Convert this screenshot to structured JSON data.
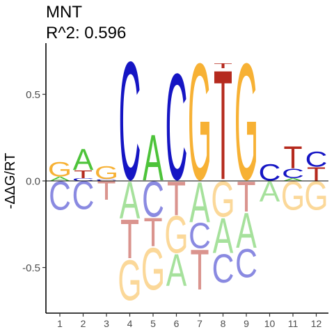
{
  "title": "MNT",
  "subtitle": "R^2: 0.596",
  "chart_data": {
    "type": "sequence_logo",
    "title": "MNT",
    "subtitle": "R^2: 0.596",
    "ylabel": "-ΔΔG/RT",
    "xlabel": "",
    "ylim": [
      -0.78,
      0.75
    ],
    "yticks": [
      -0.5,
      0.0,
      0.5
    ],
    "ytick_labels": [
      "-0.5",
      "0.0",
      "0.5"
    ],
    "positions": [
      1,
      2,
      3,
      4,
      5,
      6,
      7,
      8,
      9,
      10,
      11,
      12
    ],
    "position_labels": [
      "1",
      "2",
      "3",
      "4",
      "5",
      "6",
      "7",
      "8",
      "9",
      "10",
      "11",
      "12"
    ],
    "colors": {
      "A": "#4DC33A",
      "C": "#1515C4",
      "G": "#F7B134",
      "T": "#B52A1E"
    },
    "negative_alpha": 0.5,
    "grid": false,
    "legend": "none",
    "positive": [
      [
        {
          "base": "A",
          "height": 0.025
        },
        {
          "base": "G",
          "height": 0.085
        }
      ],
      [
        {
          "base": "C",
          "height": 0.015
        },
        {
          "base": "T",
          "height": 0.045
        },
        {
          "base": "A",
          "height": 0.125
        }
      ],
      [
        {
          "base": "C",
          "height": 0.01
        },
        {
          "base": "G",
          "height": 0.075
        }
      ],
      [
        {
          "base": "C",
          "height": 0.7
        }
      ],
      [
        {
          "base": "A",
          "height": 0.27
        }
      ],
      [
        {
          "base": "C",
          "height": 0.63
        }
      ],
      [
        {
          "base": "G",
          "height": 0.69
        }
      ],
      [
        {
          "base": "T",
          "height": 0.65
        },
        {
          "base": "T",
          "height": 0.03
        }
      ],
      [
        {
          "base": "G",
          "height": 0.69
        }
      ],
      [
        {
          "base": "C",
          "height": 0.1
        }
      ],
      [
        {
          "base": "A",
          "height": 0.015
        },
        {
          "base": "C",
          "height": 0.055
        },
        {
          "base": "T",
          "height": 0.13
        }
      ],
      [
        {
          "base": "T",
          "height": 0.08
        },
        {
          "base": "C",
          "height": 0.09
        }
      ]
    ],
    "negative": [
      [
        {
          "base": "C",
          "height": 0.17
        }
      ],
      [
        {
          "base": "C",
          "height": 0.165
        }
      ],
      [
        {
          "base": "T",
          "height": 0.11
        }
      ],
      [
        {
          "base": "A",
          "height": 0.22
        },
        {
          "base": "T",
          "height": 0.23
        },
        {
          "base": "G",
          "height": 0.24
        }
      ],
      [
        {
          "base": "C",
          "height": 0.21
        },
        {
          "base": "T",
          "height": 0.17
        },
        {
          "base": "G",
          "height": 0.25
        }
      ],
      [
        {
          "base": "T",
          "height": 0.2
        },
        {
          "base": "G",
          "height": 0.22
        },
        {
          "base": "A",
          "height": 0.19
        }
      ],
      [
        {
          "base": "A",
          "height": 0.24
        },
        {
          "base": "C",
          "height": 0.15
        },
        {
          "base": "T",
          "height": 0.24
        }
      ],
      [
        {
          "base": "G",
          "height": 0.21
        },
        {
          "base": "A",
          "height": 0.21
        },
        {
          "base": "C",
          "height": 0.17
        }
      ],
      [
        {
          "base": "T",
          "height": 0.18
        },
        {
          "base": "A",
          "height": 0.21
        },
        {
          "base": "C",
          "height": 0.17
        }
      ],
      [
        {
          "base": "A",
          "height": 0.12
        }
      ],
      [
        {
          "base": "G",
          "height": 0.17
        }
      ],
      [
        {
          "base": "G",
          "height": 0.17
        }
      ]
    ]
  }
}
